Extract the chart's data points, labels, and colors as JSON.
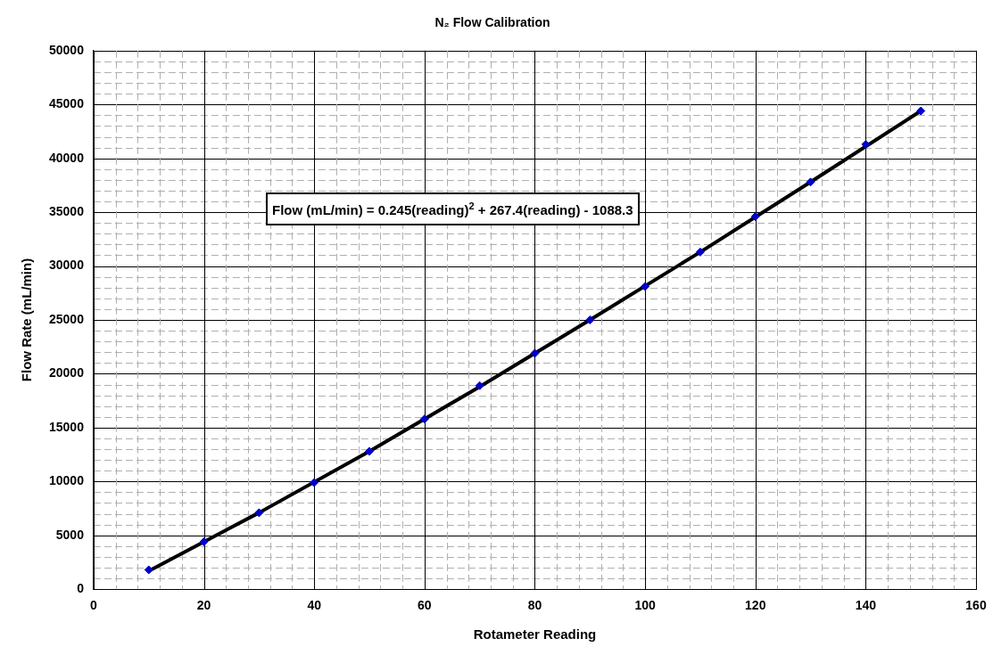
{
  "chart_data": {
    "type": "scatter",
    "title": "N₂ Flow Calibration",
    "xlabel": "Rotameter Reading",
    "ylabel": "Flow Rate (mL/min)",
    "annotations": [
      "Flow (mL/min) = 0.245(reading)$^{2}$ + 267.4(reading) - 1088.3"
    ],
    "series": [
      {
        "type": "line",
        "color": "#000000",
        "marker": "none",
        "x": [
          10,
          30,
          50,
          70,
          90,
          110,
          130,
          150
        ],
        "values": [
          1700,
          7100,
          12800,
          18800,
          25000,
          31300,
          37800,
          44400
        ]
      },
      {
        "type": "scatter",
        "color": "#0000cc",
        "marker": "diamond",
        "x": [
          10,
          20,
          30,
          40,
          50,
          60,
          70,
          80,
          90,
          100,
          110,
          120,
          130,
          140,
          150
        ],
        "values": [
          1800,
          4400,
          7100,
          9900,
          12800,
          15800,
          18900,
          21900,
          25000,
          28100,
          31300,
          34600,
          37800,
          41300,
          44400
        ]
      }
    ],
    "xlim": [
      0,
      160
    ],
    "xticks": [
      0,
      {
        "value": 4,
        "label": null
      },
      {
        "value": 8,
        "label": null
      },
      {
        "value": 12,
        "label": null
      },
      {
        "value": 16,
        "label": null
      },
      20,
      {
        "value": 24,
        "label": null
      },
      {
        "value": 28,
        "label": null
      },
      {
        "value": 32,
        "label": null
      },
      {
        "value": 36,
        "label": null
      },
      40,
      {
        "value": 44,
        "label": null
      },
      {
        "value": 48,
        "label": null
      },
      {
        "value": 52,
        "label": null
      },
      {
        "value": 56,
        "label": null
      },
      60,
      {
        "value": 64,
        "label": null
      },
      {
        "value": 68,
        "label": null
      },
      {
        "value": 72,
        "label": null
      },
      {
        "value": 76,
        "label": null
      },
      80,
      {
        "value": 84,
        "label": null
      },
      {
        "value": 88,
        "label": null
      },
      {
        "value": 92,
        "label": null
      },
      {
        "value": 96,
        "label": null
      },
      100,
      {
        "value": 104,
        "label": null
      },
      {
        "value": 108,
        "label": null
      },
      {
        "value": 112,
        "label": null
      },
      {
        "value": 116,
        "label": null
      },
      120,
      {
        "value": 124,
        "label": null
      },
      {
        "value": 128,
        "label": null
      },
      {
        "value": 132,
        "label": null
      },
      {
        "value": 136,
        "label": null
      },
      140,
      {
        "value": 144,
        "label": null
      },
      {
        "value": 148,
        "label": null
      },
      {
        "value": 152,
        "label": null
      },
      {
        "value": 156,
        "label": null
      },
      160
    ],
    "ylim": [
      0,
      50000
    ],
    "yticks": [
      0,
      {
        "value": 1000,
        "label": null
      },
      {
        "value": 2000,
        "label": null
      },
      {
        "value": 3000,
        "label": null
      },
      {
        "value": 4000,
        "label": null
      },
      5000,
      {
        "value": 6000,
        "label": null
      },
      {
        "value": 7000,
        "label": null
      },
      {
        "value": 8000,
        "label": null
      },
      {
        "value": 9000,
        "label": null
      },
      10000,
      {
        "value": 11000,
        "label": null
      },
      {
        "value": 12000,
        "label": null
      },
      {
        "value": 13000,
        "label": null
      },
      {
        "value": 14000,
        "label": null
      },
      15000,
      {
        "value": 16000,
        "label": null
      },
      {
        "value": 17000,
        "label": null
      },
      {
        "value": 18000,
        "label": null
      },
      {
        "value": 19000,
        "label": null
      },
      20000,
      {
        "value": 21000,
        "label": null
      },
      {
        "value": 22000,
        "label": null
      },
      {
        "value": 23000,
        "label": null
      },
      {
        "value": 24000,
        "label": null
      },
      25000,
      {
        "value": 26000,
        "label": null
      },
      {
        "value": 27000,
        "label": null
      },
      {
        "value": 28000,
        "label": null
      },
      {
        "value": 29000,
        "label": null
      },
      30000,
      {
        "value": 31000,
        "label": null
      },
      {
        "value": 32000,
        "label": null
      },
      {
        "value": 33000,
        "label": null
      },
      {
        "value": 34000,
        "label": null
      },
      35000,
      {
        "value": 36000,
        "label": null
      },
      {
        "value": 37000,
        "label": null
      },
      {
        "value": 38000,
        "label": null
      },
      {
        "value": 39000,
        "label": null
      },
      40000,
      {
        "value": 41000,
        "label": null
      },
      {
        "value": 42000,
        "label": null
      },
      {
        "value": 43000,
        "label": null
      },
      {
        "value": 44000,
        "label": null
      },
      45000,
      {
        "value": 46000,
        "label": null
      },
      {
        "value": 47000,
        "label": null
      },
      {
        "value": 48000,
        "label": null
      },
      {
        "value": 49000,
        "label": null
      },
      50000
    ],
    "grid": true
  }
}
